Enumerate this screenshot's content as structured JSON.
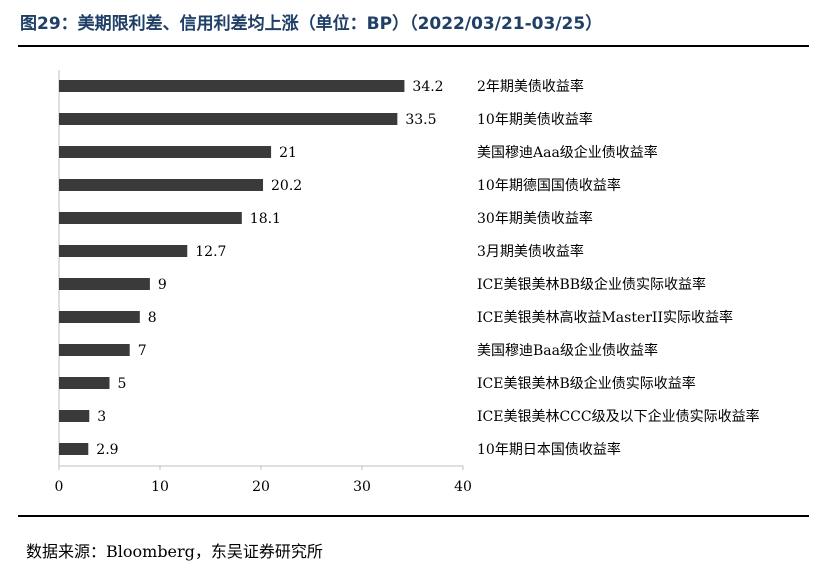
{
  "figure": {
    "title": "图29：美期限利差、信用利差均上涨（单位：BP）（2022/03/21-03/25）",
    "source": "数据来源：Bloomberg，东吴证券研究所"
  },
  "colors": {
    "bar": "#3a3a3a",
    "title": "#1f3f66",
    "axis": "#bfbfbf",
    "text": "#000000"
  },
  "chart_data": {
    "type": "bar",
    "orientation": "horizontal",
    "categories": [
      "2年期美债收益率",
      "10年期美债收益率",
      "美国穆迪Aaa级企业债收益率",
      "10年期德国国债收益率",
      "30年期美债收益率",
      "3月期美债收益率",
      "ICE美银美林BB级企业债实际收益率",
      "ICE美银美林高收益MasterII实际收益率",
      "美国穆迪Baa级企业债收益率",
      "ICE美银美林B级企业债实际收益率",
      "ICE美银美林CCC级及以下企业债实际收益率",
      "10年期日本国债收益率"
    ],
    "values": [
      34.2,
      33.5,
      21,
      20.2,
      18.1,
      12.7,
      9,
      8,
      7,
      5,
      3,
      2.9
    ],
    "value_labels": [
      "34.2",
      "33.5",
      "21",
      "20.2",
      "18.1",
      "12.7",
      "9",
      "8",
      "7",
      "5",
      "3",
      "2.9"
    ],
    "xlim": [
      0,
      40
    ],
    "xticks": [
      "0",
      "10",
      "20",
      "30",
      "40"
    ],
    "legend": "none",
    "grid": false
  }
}
